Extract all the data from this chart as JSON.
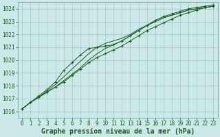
{
  "title": "Graphe pression niveau de la mer (hPa)",
  "bg_color": "#cce8e8",
  "grid_color": "#aacccc",
  "line_color": "#1a5c1a",
  "xlim": [
    -0.5,
    23.5
  ],
  "ylim": [
    1015.5,
    1024.5
  ],
  "yticks": [
    1016,
    1017,
    1018,
    1019,
    1020,
    1021,
    1022,
    1023,
    1024
  ],
  "xticks": [
    0,
    1,
    2,
    3,
    4,
    5,
    6,
    7,
    8,
    9,
    10,
    11,
    12,
    13,
    14,
    15,
    16,
    17,
    18,
    19,
    20,
    21,
    22,
    23
  ],
  "series": [
    [
      1016.2,
      1016.7,
      1017.1,
      1017.5,
      1017.9,
      1018.3,
      1018.8,
      1019.3,
      1019.8,
      1020.2,
      1020.5,
      1020.8,
      1021.1,
      1021.5,
      1021.9,
      1022.3,
      1022.6,
      1022.9,
      1023.2,
      1023.5,
      1023.7,
      1023.9,
      1024.1,
      1024.2
    ],
    [
      1016.2,
      1016.7,
      1017.1,
      1017.5,
      1017.9,
      1018.4,
      1018.9,
      1019.4,
      1020.0,
      1020.5,
      1020.9,
      1021.2,
      1021.5,
      1021.9,
      1022.3,
      1022.7,
      1023.0,
      1023.3,
      1023.5,
      1023.7,
      1023.9,
      1024.0,
      1024.1,
      1024.2
    ],
    [
      1016.2,
      1016.7,
      1017.1,
      1017.6,
      1018.1,
      1018.7,
      1019.3,
      1019.9,
      1020.5,
      1021.0,
      1021.3,
      1021.5,
      1021.7,
      1022.0,
      1022.4,
      1022.7,
      1023.0,
      1023.3,
      1023.5,
      1023.7,
      1023.9,
      1024.0,
      1024.1,
      1024.2
    ],
    [
      1016.2,
      1016.7,
      1017.2,
      1017.7,
      1018.3,
      1019.2,
      1019.8,
      1020.4,
      1020.9,
      1021.0,
      1021.1,
      1021.2,
      1021.5,
      1021.9,
      1022.3,
      1022.7,
      1023.1,
      1023.4,
      1023.6,
      1023.8,
      1024.0,
      1024.1,
      1024.2,
      1024.3
    ]
  ],
  "marker_series": [
    0,
    3
  ],
  "title_fontsize": 7,
  "tick_fontsize": 5.5
}
